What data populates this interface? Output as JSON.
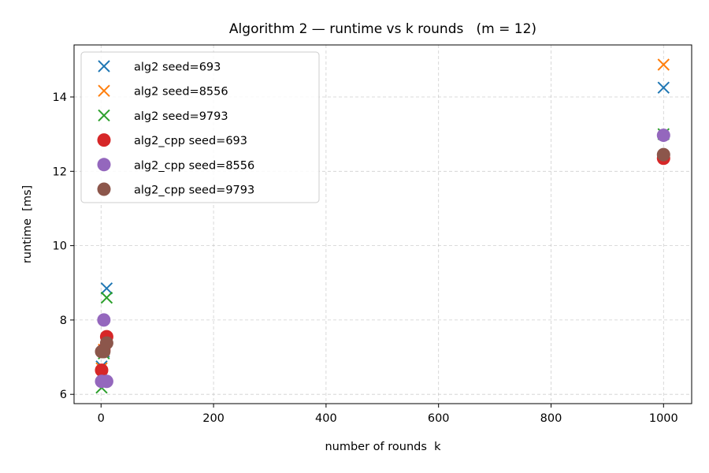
{
  "chart_data": {
    "type": "scatter",
    "title": "Algorithm 2 — runtime vs k rounds   (m = 12)",
    "xlabel": "number of rounds  k",
    "ylabel": "runtime  [ms]",
    "xlim": [
      -48,
      1050
    ],
    "ylim": [
      5.75,
      15.4
    ],
    "xticks": [
      0,
      200,
      400,
      600,
      800,
      1000
    ],
    "yticks": [
      6,
      8,
      10,
      12,
      14
    ],
    "grid": true,
    "legend_position": "top-left",
    "series": [
      {
        "name": "alg2  seed=693",
        "marker": "x",
        "color": "#1f77b4",
        "x": [
          1,
          5,
          10,
          1000
        ],
        "y": [
          6.75,
          7.15,
          8.85,
          14.25
        ]
      },
      {
        "name": "alg2  seed=8556",
        "marker": "x",
        "color": "#ff7f0e",
        "x": [
          1,
          5,
          10,
          1000
        ],
        "y": [
          6.7,
          7.2,
          7.5,
          14.87
        ]
      },
      {
        "name": "alg2  seed=9793",
        "marker": "x",
        "color": "#2ca02c",
        "x": [
          1,
          5,
          10,
          1000
        ],
        "y": [
          6.18,
          7.1,
          8.6,
          13.0
        ]
      },
      {
        "name": "alg2_cpp  seed=693",
        "marker": "circle",
        "color": "#d62728",
        "x": [
          1,
          5,
          10,
          1000
        ],
        "y": [
          6.65,
          7.2,
          7.55,
          12.35
        ]
      },
      {
        "name": "alg2_cpp  seed=8556",
        "marker": "circle",
        "color": "#9467bd",
        "x": [
          1,
          5,
          10,
          1000
        ],
        "y": [
          6.35,
          8.0,
          6.35,
          12.97
        ]
      },
      {
        "name": "alg2_cpp  seed=9793",
        "marker": "circle",
        "color": "#8c564b",
        "x": [
          1,
          5,
          10,
          1000
        ],
        "y": [
          7.15,
          7.15,
          7.38,
          12.45
        ]
      }
    ]
  }
}
